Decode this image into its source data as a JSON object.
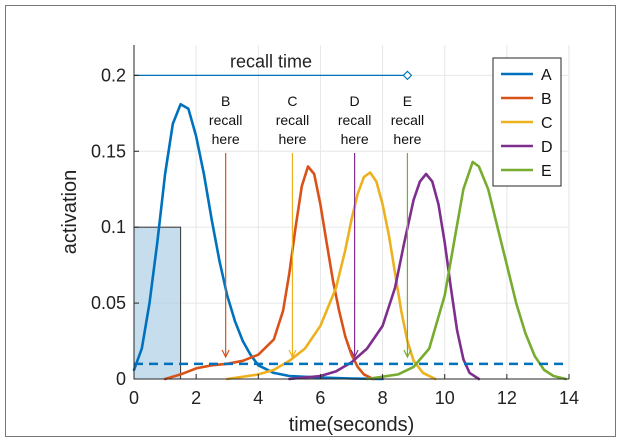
{
  "chart_data": {
    "type": "line",
    "xlabel": "time(seconds)",
    "ylabel": "activation",
    "xlim": [
      0,
      14
    ],
    "ylim": [
      0,
      0.22
    ],
    "x_ticks": [
      "0",
      "2",
      "4",
      "6",
      "8",
      "10",
      "12",
      "14"
    ],
    "y_ticks": [
      "0",
      "0.05",
      "0.1",
      "0.15",
      "0.2"
    ],
    "grid": true,
    "legend_position": "top-right",
    "series": [
      {
        "name": "A",
        "color": "#0072BD",
        "points": [
          [
            0,
            0.006
          ],
          [
            0.25,
            0.02
          ],
          [
            0.5,
            0.05
          ],
          [
            0.75,
            0.09
          ],
          [
            1.0,
            0.135
          ],
          [
            1.25,
            0.168
          ],
          [
            1.5,
            0.181
          ],
          [
            1.75,
            0.178
          ],
          [
            2.0,
            0.16
          ],
          [
            2.25,
            0.135
          ],
          [
            2.5,
            0.105
          ],
          [
            2.75,
            0.078
          ],
          [
            3.0,
            0.055
          ],
          [
            3.25,
            0.038
          ],
          [
            3.5,
            0.025
          ],
          [
            3.75,
            0.016
          ],
          [
            4.0,
            0.009
          ],
          [
            4.5,
            0.004
          ],
          [
            5.0,
            0.002
          ],
          [
            6.0,
            0.001
          ],
          [
            7.0,
            0.0003
          ],
          [
            8.0,
            0.0
          ]
        ]
      },
      {
        "name": "B",
        "color": "#D95319",
        "points": [
          [
            1.0,
            0.0
          ],
          [
            1.5,
            0.003
          ],
          [
            2.0,
            0.007
          ],
          [
            2.5,
            0.009
          ],
          [
            3.0,
            0.01
          ],
          [
            3.5,
            0.012
          ],
          [
            4.0,
            0.016
          ],
          [
            4.5,
            0.026
          ],
          [
            4.8,
            0.045
          ],
          [
            5.0,
            0.07
          ],
          [
            5.2,
            0.1
          ],
          [
            5.4,
            0.127
          ],
          [
            5.6,
            0.14
          ],
          [
            5.8,
            0.135
          ],
          [
            6.0,
            0.115
          ],
          [
            6.2,
            0.09
          ],
          [
            6.4,
            0.065
          ],
          [
            6.6,
            0.045
          ],
          [
            6.8,
            0.028
          ],
          [
            7.0,
            0.016
          ],
          [
            7.2,
            0.008
          ],
          [
            7.4,
            0.003
          ],
          [
            7.7,
            0.0
          ]
        ]
      },
      {
        "name": "C",
        "color": "#EDB120",
        "points": [
          [
            3.0,
            0.0
          ],
          [
            4.0,
            0.003
          ],
          [
            4.5,
            0.006
          ],
          [
            5.0,
            0.012
          ],
          [
            5.5,
            0.02
          ],
          [
            6.0,
            0.035
          ],
          [
            6.5,
            0.06
          ],
          [
            6.8,
            0.085
          ],
          [
            7.0,
            0.105
          ],
          [
            7.2,
            0.122
          ],
          [
            7.4,
            0.133
          ],
          [
            7.6,
            0.136
          ],
          [
            7.8,
            0.13
          ],
          [
            8.0,
            0.115
          ],
          [
            8.2,
            0.095
          ],
          [
            8.4,
            0.07
          ],
          [
            8.6,
            0.045
          ],
          [
            8.8,
            0.025
          ],
          [
            9.0,
            0.012
          ],
          [
            9.3,
            0.004
          ],
          [
            9.7,
            0.0
          ]
        ]
      },
      {
        "name": "D",
        "color": "#7E2F8E",
        "points": [
          [
            5.0,
            0.0
          ],
          [
            6.0,
            0.002
          ],
          [
            6.5,
            0.005
          ],
          [
            7.0,
            0.011
          ],
          [
            7.5,
            0.02
          ],
          [
            8.0,
            0.035
          ],
          [
            8.4,
            0.06
          ],
          [
            8.7,
            0.09
          ],
          [
            9.0,
            0.118
          ],
          [
            9.2,
            0.13
          ],
          [
            9.4,
            0.135
          ],
          [
            9.6,
            0.13
          ],
          [
            9.8,
            0.115
          ],
          [
            10.0,
            0.09
          ],
          [
            10.2,
            0.06
          ],
          [
            10.4,
            0.032
          ],
          [
            10.6,
            0.013
          ],
          [
            10.8,
            0.004
          ],
          [
            11.1,
            0.0
          ]
        ]
      },
      {
        "name": "E",
        "color": "#77AC30",
        "points": [
          [
            7.5,
            0.0
          ],
          [
            8.5,
            0.003
          ],
          [
            9.0,
            0.008
          ],
          [
            9.5,
            0.02
          ],
          [
            10.0,
            0.055
          ],
          [
            10.3,
            0.09
          ],
          [
            10.6,
            0.125
          ],
          [
            10.9,
            0.143
          ],
          [
            11.1,
            0.14
          ],
          [
            11.4,
            0.125
          ],
          [
            11.7,
            0.1
          ],
          [
            12.0,
            0.075
          ],
          [
            12.3,
            0.05
          ],
          [
            12.6,
            0.03
          ],
          [
            12.9,
            0.015
          ],
          [
            13.2,
            0.006
          ],
          [
            13.5,
            0.002
          ],
          [
            13.9,
            0.0
          ]
        ]
      }
    ],
    "threshold": {
      "y": 0.01,
      "style": "dashed",
      "color": "#0072BD"
    },
    "shaded_box": {
      "x": [
        0,
        1.5
      ],
      "y": [
        0,
        0.1
      ],
      "color": "#A6CBE3"
    },
    "recall_time": {
      "label": "recall time",
      "y": 0.2,
      "x": [
        0,
        8.8
      ],
      "color": "#0072BD"
    },
    "recall_markers": [
      {
        "lines": [
          "B",
          "recall",
          "here"
        ],
        "x": 2.95,
        "color": "#D95319"
      },
      {
        "lines": [
          "C",
          "recall",
          "here"
        ],
        "x": 5.1,
        "color": "#EDB120"
      },
      {
        "lines": [
          "D",
          "recall",
          "here"
        ],
        "x": 7.1,
        "color": "#7E2F8E"
      },
      {
        "lines": [
          "E",
          "recall",
          "here"
        ],
        "x": 8.8,
        "color": "#77AC30"
      }
    ]
  }
}
